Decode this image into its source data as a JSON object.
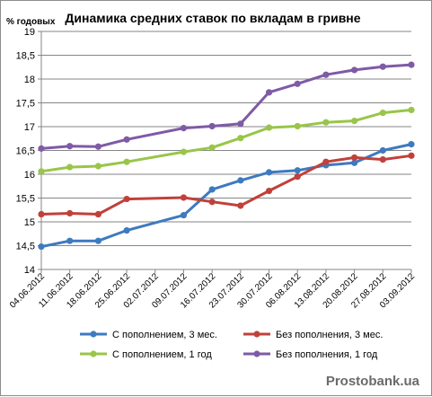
{
  "chart_data": {
    "type": "line",
    "title": "Динамика средних ставок по вкладам в гривне",
    "ylabel": "% годовых",
    "xlabel": "",
    "ylim": [
      14,
      19
    ],
    "yticks": [
      "14",
      "14,5",
      "15",
      "15,5",
      "16",
      "16,5",
      "17",
      "17,5",
      "18",
      "18,5",
      "19"
    ],
    "grid": "horizontal",
    "legend": "bottom",
    "categories": [
      "04.06.2012",
      "11.06.2012",
      "18.06.2012",
      "25.06.2012",
      "02.07.2012",
      "09.07.2012",
      "16.07.2012",
      "23.07.2012",
      "30.07.2012",
      "06.08.2012",
      "13.08.2012",
      "20.08.2012",
      "27.08.2012",
      "03.09.2012"
    ],
    "series": [
      {
        "name": "С пополнением, 3 мес.",
        "color": "#3e7abf",
        "values": [
          14.48,
          14.6,
          14.6,
          14.82,
          null,
          15.14,
          15.68,
          15.87,
          16.04,
          16.08,
          16.19,
          16.24,
          16.5,
          16.63
        ]
      },
      {
        "name": "Без пополнения, 3 мес.",
        "color": "#c0413b",
        "values": [
          15.16,
          15.18,
          15.16,
          15.48,
          null,
          15.51,
          15.42,
          15.34,
          15.65,
          15.95,
          16.26,
          16.35,
          16.31,
          16.39
        ]
      },
      {
        "name": "С пополнением, 1 год",
        "color": "#99c549",
        "values": [
          16.06,
          16.15,
          16.17,
          16.26,
          null,
          16.47,
          16.56,
          16.76,
          16.98,
          17.01,
          17.09,
          17.12,
          17.29,
          17.35
        ]
      },
      {
        "name": "Без пополнения, 1 год",
        "color": "#7f5aa6",
        "values": [
          16.54,
          16.59,
          16.58,
          16.73,
          null,
          16.97,
          17.01,
          17.06,
          17.72,
          17.9,
          18.09,
          18.19,
          18.26,
          18.3
        ]
      }
    ]
  },
  "watermark": "Prostobank.ua"
}
